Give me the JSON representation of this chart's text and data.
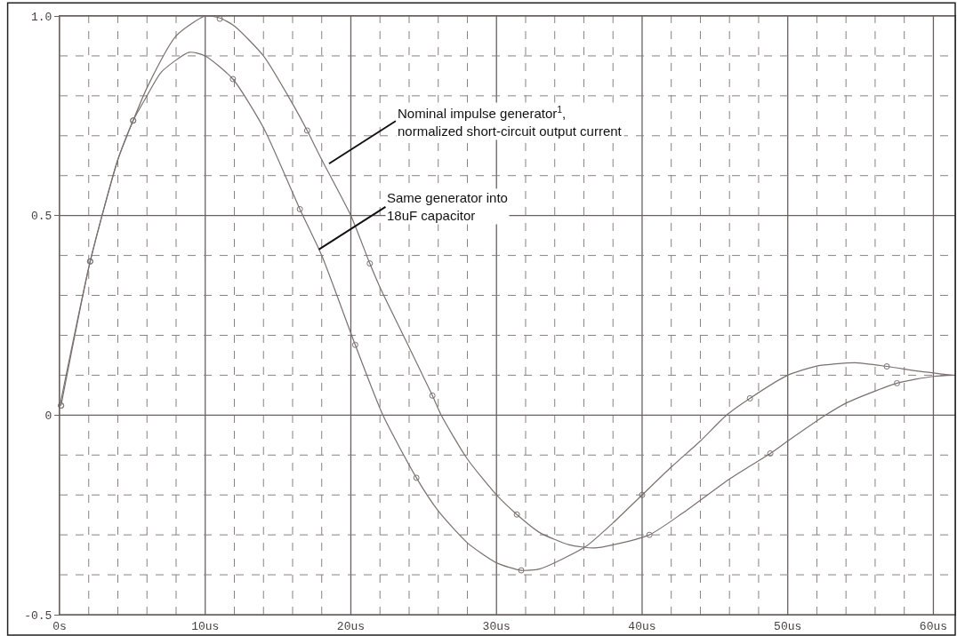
{
  "chart_data": {
    "type": "line",
    "xlim": [
      0,
      61.5
    ],
    "ylim": [
      -0.5,
      1.0
    ],
    "xticks": [
      {
        "value": 0,
        "label": "0s"
      },
      {
        "value": 2,
        "label": null
      },
      {
        "value": 4,
        "label": null
      },
      {
        "value": 6,
        "label": null
      },
      {
        "value": 8,
        "label": null
      },
      {
        "value": 10,
        "label": "10us"
      },
      {
        "value": 12,
        "label": null
      },
      {
        "value": 14,
        "label": null
      },
      {
        "value": 16,
        "label": null
      },
      {
        "value": 18,
        "label": null
      },
      {
        "value": 20,
        "label": "20us"
      },
      {
        "value": 22,
        "label": null
      },
      {
        "value": 24,
        "label": null
      },
      {
        "value": 26,
        "label": null
      },
      {
        "value": 28,
        "label": null
      },
      {
        "value": 30,
        "label": "30us"
      },
      {
        "value": 32,
        "label": null
      },
      {
        "value": 34,
        "label": null
      },
      {
        "value": 36,
        "label": null
      },
      {
        "value": 38,
        "label": null
      },
      {
        "value": 40,
        "label": "40us"
      },
      {
        "value": 42,
        "label": null
      },
      {
        "value": 44,
        "label": null
      },
      {
        "value": 46,
        "label": null
      },
      {
        "value": 48,
        "label": null
      },
      {
        "value": 50,
        "label": "50us"
      },
      {
        "value": 52,
        "label": null
      },
      {
        "value": 54,
        "label": null
      },
      {
        "value": 56,
        "label": null
      },
      {
        "value": 58,
        "label": null
      },
      {
        "value": 60,
        "label": "60us"
      }
    ],
    "yticks": [
      -0.5,
      {
        "value": -0.4,
        "label": null
      },
      {
        "value": -0.3,
        "label": null
      },
      {
        "value": -0.2,
        "label": null
      },
      {
        "value": -0.1,
        "label": null
      },
      0,
      {
        "value": 0.1,
        "label": null
      },
      {
        "value": 0.2,
        "label": null
      },
      {
        "value": 0.3,
        "label": null
      },
      {
        "value": 0.4,
        "label": null
      },
      0.5,
      {
        "value": 0.6,
        "label": null
      },
      {
        "value": 0.7,
        "label": null
      },
      {
        "value": 0.8,
        "label": null
      },
      {
        "value": 0.9,
        "label": null
      },
      {
        "value": 1.0,
        "label": "1.0"
      }
    ],
    "grid": true,
    "series": [
      {
        "color": "#7a7070",
        "marker": "none",
        "x": [
          0,
          2.1,
          4,
          5.05,
          6,
          8,
          10,
          11,
          12,
          14,
          16,
          17,
          18,
          20,
          21.3,
          22,
          24,
          25.6,
          26.2,
          28,
          30,
          31.4,
          33,
          35,
          36.7,
          38,
          40.5,
          43,
          46,
          48.8,
          50,
          52.6,
          54,
          57.5,
          60,
          61.5
        ],
        "values": [
          0.02,
          0.385,
          0.64,
          0.738,
          0.82,
          0.95,
          1.0,
          0.995,
          0.975,
          0.9,
          0.78,
          0.713,
          0.64,
          0.5,
          0.38,
          0.32,
          0.17,
          0.049,
          0,
          -0.11,
          -0.2,
          -0.249,
          -0.295,
          -0.325,
          -0.333,
          -0.325,
          -0.3,
          -0.24,
          -0.16,
          -0.096,
          -0.065,
          0,
          0.03,
          0.08,
          0.097,
          0.1
        ]
      },
      {
        "color": "#7a7070",
        "marker": "none",
        "x": [
          0.1,
          2.1,
          4,
          5.05,
          6,
          7,
          8.9,
          10,
          11.9,
          14,
          16.5,
          18,
          20.3,
          22.2,
          24.5,
          26,
          28,
          30,
          31.7,
          33,
          36.1,
          38,
          40,
          42,
          44,
          45.8,
          47.4,
          50,
          52,
          54.6,
          56.8,
          59,
          61.3
        ],
        "values": [
          0.024,
          0.385,
          0.64,
          0.738,
          0.8,
          0.86,
          0.909,
          0.9,
          0.842,
          0.72,
          0.516,
          0.4,
          0.176,
          0,
          -0.157,
          -0.24,
          -0.32,
          -0.37,
          -0.389,
          -0.385,
          -0.33,
          -0.27,
          -0.2,
          -0.13,
          -0.065,
          0,
          0.042,
          0.1,
          0.123,
          0.131,
          0.122,
          0.11,
          0.1
        ]
      },
      {
        "type": "scatter",
        "color": "#7a7070",
        "marker": "circle",
        "x": [
          0.1,
          2.1,
          5.05,
          11,
          17,
          21.3,
          25.6,
          31.4,
          40.5,
          48.8,
          57.5
        ],
        "values": [
          0.024,
          0.385,
          0.738,
          0.993,
          0.713,
          0.38,
          0.049,
          -0.249,
          -0.3,
          -0.096,
          0.08
        ]
      },
      {
        "type": "scatter",
        "color": "#7a7070",
        "marker": "circle",
        "x": [
          0.1,
          2.1,
          5.05,
          11.9,
          16.5,
          20.3,
          24.5,
          31.7,
          40,
          47.4,
          56.8
        ],
        "values": [
          0.024,
          0.385,
          0.738,
          0.842,
          0.516,
          0.176,
          -0.157,
          -0.389,
          -0.2,
          0.042,
          0.122
        ]
      }
    ],
    "annotations": [
      {
        "text": "Nominal impulse generator$^{1}$,\nnormalized short-circuit output current",
        "x": 18.5,
        "y": 0.63
      },
      {
        "text": "Same generator into\n18uF capacitor",
        "x": 17.8,
        "y": 0.415
      }
    ]
  }
}
